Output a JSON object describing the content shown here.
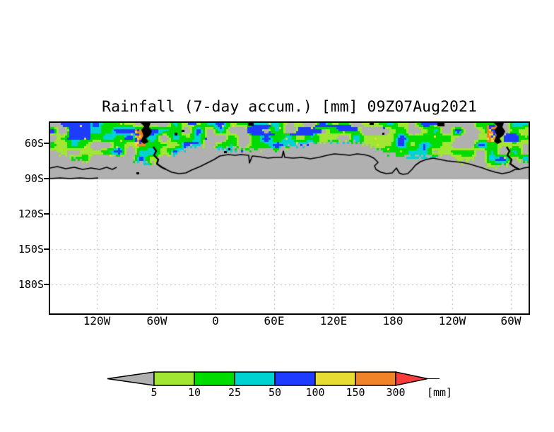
{
  "title": "Rainfall (7-day accum.) [mm] 09Z07Aug2021",
  "y_axis": {
    "ticks": [
      "60S",
      "90S",
      "120S",
      "150S",
      "180S"
    ]
  },
  "x_axis": {
    "ticks": [
      "120W",
      "60W",
      "0",
      "60E",
      "120E",
      "180",
      "120W",
      "60W"
    ]
  },
  "colorbar": {
    "levels": [
      "5",
      "10",
      "25",
      "50",
      "100",
      "150",
      "300"
    ],
    "units_label": "[mm]",
    "below_min_color": "#b0b0b0",
    "box_colors": [
      "#a0e632",
      "#00dc00",
      "#00d2d2",
      "#1e3cff",
      "#e6dc32",
      "#f08228"
    ],
    "above_max_color": "#fa3c3c"
  },
  "map": {
    "ocean_no_rain_gray": "#b0b0b0",
    "coastline_color": "#000000",
    "land_color": "#000000",
    "grid_color": "#b4b4b4",
    "background": "#ffffff"
  },
  "chart_data": {
    "type": "heatmap",
    "title": "Rainfall (7-day accum.) [mm] 09Z07Aug2021",
    "variable": "Rainfall, 7-day accumulation",
    "units": "mm",
    "valid_datetime": "09Z07Aug2021",
    "x_tick_labels": [
      "120W",
      "60W",
      "0",
      "60E",
      "120E",
      "180",
      "120W",
      "60W"
    ],
    "y_tick_labels": [
      "60S",
      "90S",
      "120S",
      "150S",
      "180S"
    ],
    "colorbar_levels": [
      5,
      10,
      25,
      50,
      100,
      150,
      300
    ],
    "colorbar_colors": [
      "#b0b0b0",
      "#a0e632",
      "#00dc00",
      "#00d2d2",
      "#1e3cff",
      "#e6dc32",
      "#f08228",
      "#fa3c3c"
    ],
    "grid": "dashed gray gridlines below 90S; gray shading from map top to 90S",
    "legend_position": "bottom horizontal arrow colorbar",
    "description": "Circumpolar band of 7-day accumulated rainfall (5 to 300+ mm, pixelated green/cyan/blue with yellow-orange maxima near the southern tip of South America) across the Southern Ocean storm track along the top of the map; gray indicates below 5 mm; Antarctic coastline outlined in black; region south of the 90S gridline is empty/white."
  }
}
